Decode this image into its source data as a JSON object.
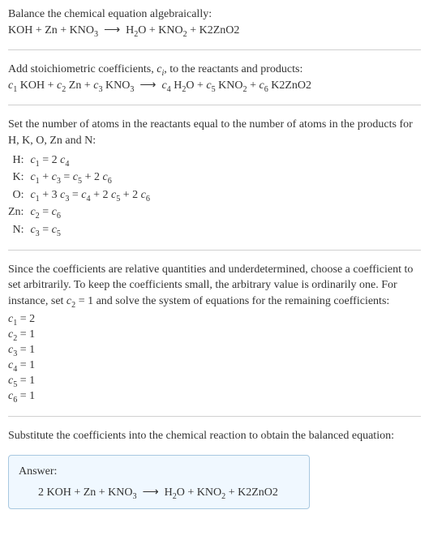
{
  "fontsize_body": 14,
  "color_text": "#333333",
  "color_divider": "#d0d0d0",
  "color_answer_border": "#a8c8e0",
  "color_answer_bg": "#f0f8ff",
  "answer_box_width": 372,
  "intro": {
    "line1": "Balance the chemical equation algebraically:",
    "eq_html": "KOH + Zn + KNO<sub>3</sub> &nbsp;⟶&nbsp; H<sub>2</sub>O + KNO<sub>2</sub> + K2ZnO2"
  },
  "stoich": {
    "text_html": "Add stoichiometric coefficients, <span class='ital'>c<sub>i</sub></span>, to the reactants and products:",
    "eq_html": "<span class='ital'>c</span><sub>1</sub> KOH + <span class='ital'>c</span><sub>2</sub> Zn + <span class='ital'>c</span><sub>3</sub> KNO<sub>3</sub> &nbsp;⟶&nbsp; <span class='ital'>c</span><sub>4</sub> H<sub>2</sub>O + <span class='ital'>c</span><sub>5</sub> KNO<sub>2</sub> + <span class='ital'>c</span><sub>6</sub> K2ZnO2"
  },
  "atoms": {
    "intro_html": "Set the number of atoms in the reactants equal to the number of atoms in the products for H, K, O, Zn and N:",
    "rows": [
      {
        "label": "H:",
        "eq_html": "<span class='ital'>c</span><sub>1</sub> = 2 <span class='ital'>c</span><sub>4</sub>"
      },
      {
        "label": "K:",
        "eq_html": "<span class='ital'>c</span><sub>1</sub> + <span class='ital'>c</span><sub>3</sub> = <span class='ital'>c</span><sub>5</sub> + 2 <span class='ital'>c</span><sub>6</sub>"
      },
      {
        "label": "O:",
        "eq_html": "<span class='ital'>c</span><sub>1</sub> + 3 <span class='ital'>c</span><sub>3</sub> = <span class='ital'>c</span><sub>4</sub> + 2 <span class='ital'>c</span><sub>5</sub> + 2 <span class='ital'>c</span><sub>6</sub>"
      },
      {
        "label": "Zn:",
        "eq_html": "<span class='ital'>c</span><sub>2</sub> = <span class='ital'>c</span><sub>6</sub>"
      },
      {
        "label": "N:",
        "eq_html": "<span class='ital'>c</span><sub>3</sub> = <span class='ital'>c</span><sub>5</sub>"
      }
    ]
  },
  "choose": {
    "text_html": "Since the coefficients are relative quantities and underdetermined, choose a coefficient to set arbitrarily. To keep the coefficients small, the arbitrary value is ordinarily one. For instance, set <span class='ital'>c</span><sub>2</sub> = 1 and solve the system of equations for the remaining coefficients:",
    "coeffs": [
      "<span class='ital'>c</span><sub>1</sub> = 2",
      "<span class='ital'>c</span><sub>2</sub> = 1",
      "<span class='ital'>c</span><sub>3</sub> = 1",
      "<span class='ital'>c</span><sub>4</sub> = 1",
      "<span class='ital'>c</span><sub>5</sub> = 1",
      "<span class='ital'>c</span><sub>6</sub> = 1"
    ]
  },
  "substitute": {
    "text": "Substitute the coefficients into the chemical reaction to obtain the balanced equation:"
  },
  "answer": {
    "label": "Answer:",
    "eq_html": "2 KOH + Zn + KNO<sub>3</sub> &nbsp;⟶&nbsp; H<sub>2</sub>O + KNO<sub>2</sub> + K2ZnO2"
  }
}
